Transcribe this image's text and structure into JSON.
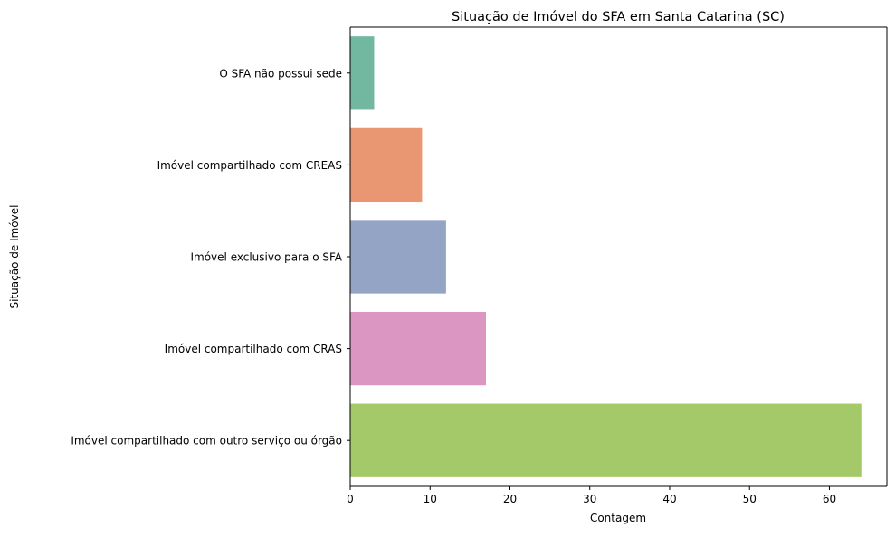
{
  "chart_data": {
    "type": "bar",
    "orientation": "horizontal",
    "title": "Situação de Imóvel do SFA em Santa Catarina (SC)",
    "xlabel": "Contagem",
    "ylabel": "Situação de Imóvel",
    "categories": [
      "O SFA não possui sede",
      "Imóvel compartilhado com CREAS",
      "Imóvel exclusivo para o SFA",
      "Imóvel compartilhado com CRAS",
      "Imóvel compartilhado com outro serviço ou órgão"
    ],
    "values": [
      3,
      9,
      12,
      17,
      64
    ],
    "colors": [
      "#72b8a1",
      "#e99773",
      "#94a4c5",
      "#db96c2",
      "#a3c968"
    ],
    "xlim": [
      0,
      67.2
    ],
    "xticks": [
      0,
      10,
      20,
      30,
      40,
      50,
      60
    ],
    "grid": false,
    "legend": "none"
  }
}
